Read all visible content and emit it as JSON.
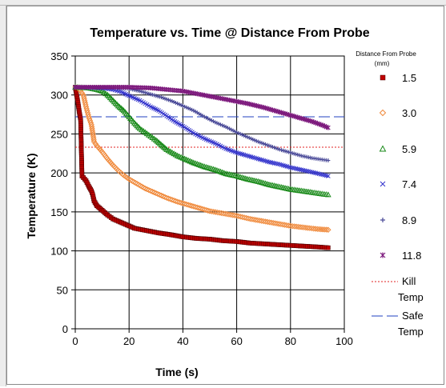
{
  "chart_data": {
    "type": "scatter",
    "title": "Temperature vs. Time @ Distance From Probe",
    "xlabel": "Time (s)",
    "ylabel": "Temperature (K)",
    "xlim": [
      0,
      100
    ],
    "ylim": [
      0,
      350
    ],
    "xticks": [
      0,
      20,
      40,
      60,
      80,
      100
    ],
    "yticks": [
      0,
      50,
      100,
      150,
      200,
      250,
      300,
      350
    ],
    "grid": true,
    "legend_position": "right",
    "legend_title": "Distance From Probe",
    "legend_units": "(mm)",
    "series": [
      {
        "name": "1.5",
        "color": "#c00000",
        "marker": "square",
        "points": [
          [
            0,
            310
          ],
          [
            0.5,
            300
          ],
          [
            1,
            290
          ],
          [
            1.5,
            278
          ],
          [
            2,
            268
          ],
          [
            2.5,
            196
          ],
          [
            3,
            194
          ],
          [
            4,
            190
          ],
          [
            5,
            183
          ],
          [
            6,
            177
          ],
          [
            6.5,
            172
          ],
          [
            7,
            164
          ],
          [
            8,
            158
          ],
          [
            10,
            152
          ],
          [
            12,
            146
          ],
          [
            14,
            141
          ],
          [
            16,
            138
          ],
          [
            18,
            135
          ],
          [
            20,
            132
          ],
          [
            22,
            129
          ],
          [
            25,
            127
          ],
          [
            28,
            125
          ],
          [
            31,
            123
          ],
          [
            35,
            121
          ],
          [
            40,
            118
          ],
          [
            45,
            116
          ],
          [
            50,
            115
          ],
          [
            55,
            113
          ],
          [
            60,
            112
          ],
          [
            65,
            110
          ],
          [
            70,
            109
          ],
          [
            75,
            108
          ],
          [
            80,
            107
          ],
          [
            85,
            106
          ],
          [
            90,
            105
          ],
          [
            94,
            104
          ]
        ]
      },
      {
        "name": "3.0",
        "color": "#f08a3c",
        "marker": "diamond",
        "points": [
          [
            0,
            310
          ],
          [
            1,
            309
          ],
          [
            2,
            305
          ],
          [
            3,
            300
          ],
          [
            4,
            285
          ],
          [
            5,
            272
          ],
          [
            6,
            262
          ],
          [
            7,
            240
          ],
          [
            8,
            235
          ],
          [
            10,
            227
          ],
          [
            12,
            218
          ],
          [
            14,
            210
          ],
          [
            16,
            203
          ],
          [
            18,
            197
          ],
          [
            20,
            192
          ],
          [
            23,
            186
          ],
          [
            26,
            180
          ],
          [
            30,
            174
          ],
          [
            34,
            168
          ],
          [
            38,
            163
          ],
          [
            42,
            159
          ],
          [
            46,
            155
          ],
          [
            50,
            151
          ],
          [
            55,
            148
          ],
          [
            60,
            145
          ],
          [
            65,
            141
          ],
          [
            70,
            138
          ],
          [
            75,
            135
          ],
          [
            80,
            132
          ],
          [
            85,
            130
          ],
          [
            90,
            128
          ],
          [
            94,
            127
          ]
        ]
      },
      {
        "name": "5.9",
        "color": "#1a8a1a",
        "marker": "triangle",
        "points": [
          [
            0,
            310
          ],
          [
            5,
            309
          ],
          [
            8,
            307
          ],
          [
            10,
            305
          ],
          [
            12,
            300
          ],
          [
            14,
            293
          ],
          [
            16,
            286
          ],
          [
            18,
            280
          ],
          [
            20,
            272
          ],
          [
            22,
            264
          ],
          [
            24,
            257
          ],
          [
            26,
            252
          ],
          [
            28,
            247
          ],
          [
            30,
            242
          ],
          [
            32,
            236
          ],
          [
            34,
            230
          ],
          [
            36,
            226
          ],
          [
            38,
            222
          ],
          [
            40,
            219
          ],
          [
            44,
            213
          ],
          [
            48,
            208
          ],
          [
            52,
            204
          ],
          [
            56,
            199
          ],
          [
            60,
            196
          ],
          [
            64,
            192
          ],
          [
            68,
            189
          ],
          [
            72,
            185
          ],
          [
            76,
            182
          ],
          [
            80,
            179
          ],
          [
            84,
            177
          ],
          [
            88,
            175
          ],
          [
            94,
            172
          ]
        ]
      },
      {
        "name": "7.4",
        "color": "#3333cc",
        "marker": "x",
        "points": [
          [
            0,
            310
          ],
          [
            10,
            309
          ],
          [
            14,
            307
          ],
          [
            17,
            304
          ],
          [
            20,
            299
          ],
          [
            24,
            293
          ],
          [
            28,
            285
          ],
          [
            31,
            280
          ],
          [
            34,
            273
          ],
          [
            37,
            266
          ],
          [
            40,
            260
          ],
          [
            44,
            251
          ],
          [
            48,
            244
          ],
          [
            52,
            238
          ],
          [
            56,
            231
          ],
          [
            60,
            226
          ],
          [
            64,
            222
          ],
          [
            68,
            218
          ],
          [
            72,
            214
          ],
          [
            76,
            211
          ],
          [
            80,
            207
          ],
          [
            84,
            204
          ],
          [
            88,
            201
          ],
          [
            94,
            196
          ]
        ]
      },
      {
        "name": "8.9",
        "color": "#4a4a98",
        "marker": "plus",
        "points": [
          [
            0,
            310
          ],
          [
            15,
            309
          ],
          [
            20,
            308
          ],
          [
            24,
            305
          ],
          [
            28,
            301
          ],
          [
            32,
            297
          ],
          [
            36,
            292
          ],
          [
            40,
            286
          ],
          [
            44,
            280
          ],
          [
            48,
            272
          ],
          [
            52,
            265
          ],
          [
            56,
            259
          ],
          [
            60,
            252
          ],
          [
            64,
            246
          ],
          [
            68,
            240
          ],
          [
            72,
            235
          ],
          [
            76,
            230
          ],
          [
            80,
            226
          ],
          [
            84,
            222
          ],
          [
            88,
            219
          ],
          [
            94,
            216
          ]
        ]
      },
      {
        "name": "11.8",
        "color": "#7d1a7d",
        "marker": "asterisk",
        "points": [
          [
            0,
            310
          ],
          [
            10,
            310
          ],
          [
            20,
            310
          ],
          [
            28,
            309
          ],
          [
            34,
            307
          ],
          [
            40,
            305
          ],
          [
            46,
            301
          ],
          [
            52,
            297
          ],
          [
            58,
            293
          ],
          [
            64,
            289
          ],
          [
            70,
            284
          ],
          [
            76,
            278
          ],
          [
            80,
            274
          ],
          [
            84,
            270
          ],
          [
            88,
            266
          ],
          [
            92,
            261
          ],
          [
            94,
            258
          ]
        ]
      }
    ],
    "reference_lines": [
      {
        "name": "Kill Temp",
        "y": 233,
        "color": "#e02020",
        "dash": "dotted"
      },
      {
        "name": "Safe Temp",
        "y": 272,
        "color": "#2040c0",
        "dash": "long-dash"
      }
    ]
  }
}
